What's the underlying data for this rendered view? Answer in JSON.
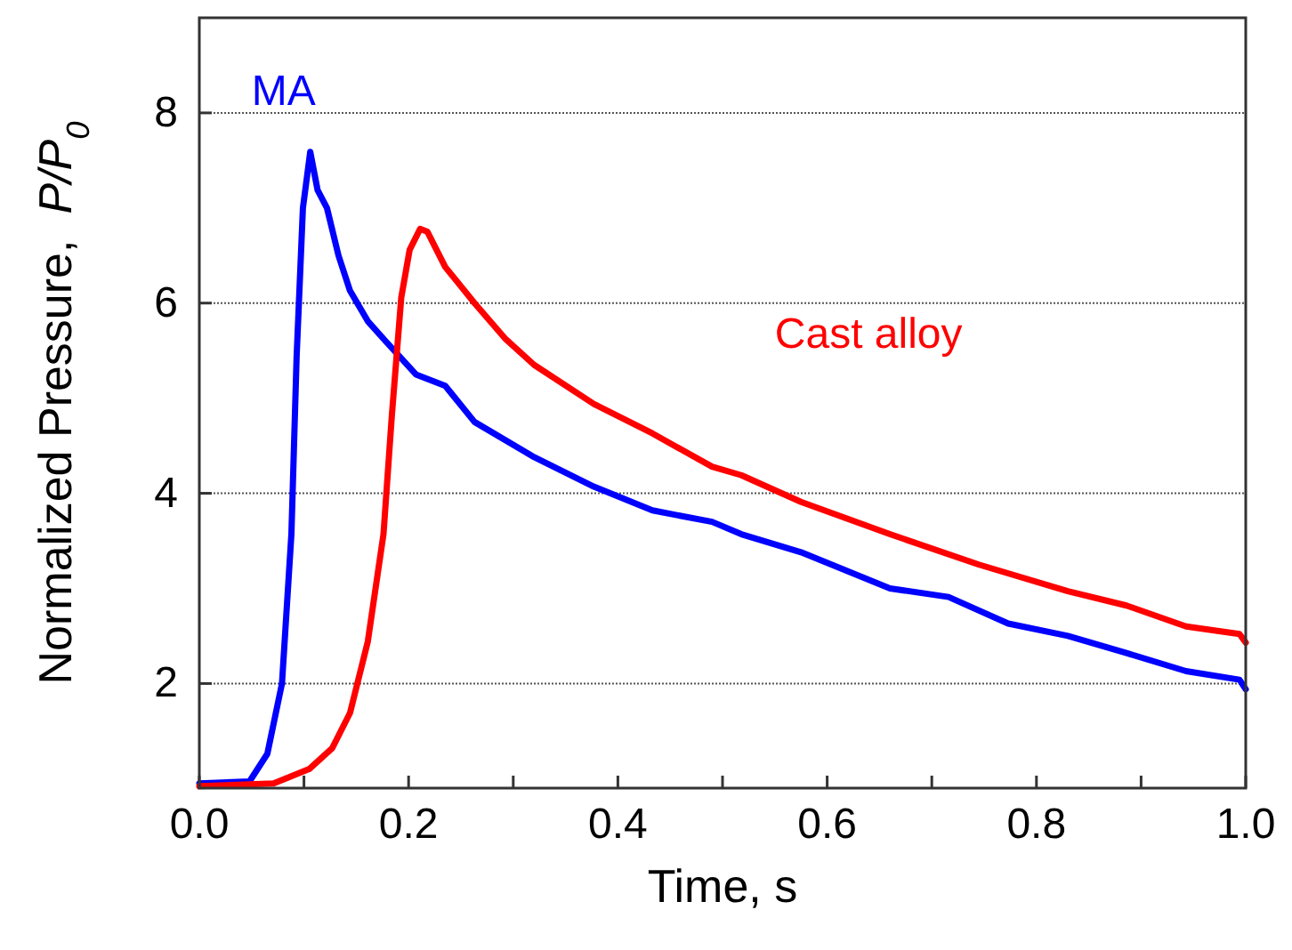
{
  "chart_data": {
    "type": "line",
    "xlabel": "Time, s",
    "ylabel": "Normalized Pressure,  P/P$_{0}$",
    "xlim": [
      0,
      1
    ],
    "ylim": [
      0.9,
      9
    ],
    "xticks": [
      {
        "value": 0,
        "label": "0.0"
      },
      {
        "value": 0.1,
        "label": null
      },
      {
        "value": 0.2,
        "label": "0.2"
      },
      {
        "value": 0.3,
        "label": null
      },
      {
        "value": 0.4,
        "label": "0.4"
      },
      {
        "value": 0.5,
        "label": null
      },
      {
        "value": 0.6,
        "label": "0.6"
      },
      {
        "value": 0.7,
        "label": null
      },
      {
        "value": 0.8,
        "label": "0.8"
      },
      {
        "value": 0.9,
        "label": null
      },
      {
        "value": 1,
        "label": "1.0"
      }
    ],
    "yticks": [
      2,
      4,
      6,
      8
    ],
    "grid": "y",
    "legend": false,
    "marker": "none",
    "line_style": "solid",
    "series": [
      {
        "name": "MA",
        "color": "#0000ff",
        "x": [
          0,
          0.048,
          0.065,
          0.079,
          0.088,
          0.093,
          0.099,
          0.106,
          0.113,
          0.122,
          0.133,
          0.144,
          0.161,
          0.178,
          0.207,
          0.235,
          0.263,
          0.32,
          0.377,
          0.433,
          0.49,
          0.518,
          0.575,
          0.66,
          0.716,
          0.773,
          0.83,
          0.886,
          0.943,
          0.994,
          1.0
        ],
        "values": [
          0.95,
          0.97,
          1.26,
          2.0,
          3.57,
          5.44,
          7.0,
          7.59,
          7.19,
          7.0,
          6.5,
          6.13,
          5.81,
          5.6,
          5.25,
          5.13,
          4.75,
          4.38,
          4.07,
          3.82,
          3.7,
          3.57,
          3.38,
          3.0,
          2.91,
          2.63,
          2.5,
          2.32,
          2.13,
          2.04,
          1.94
        ]
      },
      {
        "name": "Cast alloy",
        "color": "#ff0000",
        "x": [
          0,
          0.071,
          0.105,
          0.127,
          0.144,
          0.161,
          0.176,
          0.184,
          0.193,
          0.201,
          0.211,
          0.218,
          0.235,
          0.263,
          0.292,
          0.32,
          0.377,
          0.433,
          0.49,
          0.518,
          0.575,
          0.66,
          0.745,
          0.83,
          0.886,
          0.943,
          0.994,
          1.0
        ],
        "values": [
          0.92,
          0.95,
          1.1,
          1.32,
          1.69,
          2.44,
          3.57,
          4.82,
          6.06,
          6.56,
          6.78,
          6.75,
          6.38,
          6.0,
          5.63,
          5.35,
          4.94,
          4.63,
          4.28,
          4.19,
          3.91,
          3.57,
          3.25,
          2.97,
          2.82,
          2.6,
          2.52,
          2.43
        ]
      }
    ]
  }
}
